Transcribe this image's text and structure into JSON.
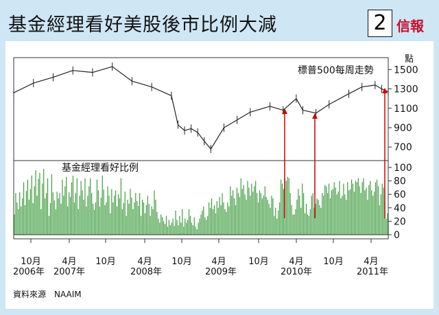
{
  "header": {
    "title": "基金經理看好美股後市比例大減",
    "page_number": "2",
    "brand": "信報"
  },
  "source": "資料來源　NAAIM",
  "chart_data": [
    {
      "type": "line",
      "title": "標普500每周走勢",
      "unit": "點",
      "yticks": [
        1500,
        1300,
        1100,
        900,
        700
      ],
      "ylim": [
        560,
        1580
      ],
      "x": [
        "2006-09",
        "2006-12",
        "2007-03",
        "2007-06",
        "2007-09",
        "2007-12",
        "2008-03",
        "2008-06",
        "2008-09",
        "2008-10",
        "2008-11",
        "2008-12",
        "2009-01",
        "2009-02",
        "2009-03",
        "2009-05",
        "2009-07",
        "2009-09",
        "2009-12",
        "2010-02",
        "2010-04",
        "2010-05",
        "2010-07",
        "2010-09",
        "2010-12",
        "2011-02",
        "2011-04",
        "2011-05",
        "2011-06"
      ],
      "values": [
        1260,
        1360,
        1420,
        1490,
        1470,
        1530,
        1380,
        1320,
        1230,
        930,
        870,
        890,
        850,
        760,
        680,
        900,
        980,
        1060,
        1120,
        1080,
        1200,
        1080,
        1050,
        1140,
        1250,
        1320,
        1340,
        1300,
        1270
      ]
    },
    {
      "type": "bar",
      "title": "基金經理看好比例",
      "yticks": [
        100,
        80,
        60,
        40,
        20,
        0
      ],
      "ylim": [
        0,
        100
      ],
      "color": "#3a9a3a",
      "values": [
        30,
        62,
        48,
        38,
        63,
        42,
        54,
        78,
        44,
        65,
        82,
        52,
        68,
        88,
        47,
        72,
        96,
        58,
        83,
        92,
        38,
        76,
        98,
        54,
        62,
        84,
        28,
        47,
        90,
        63,
        51,
        38,
        64,
        54,
        62,
        46,
        82,
        58,
        72,
        86,
        42,
        63,
        56,
        78,
        88,
        48,
        62,
        84,
        38,
        58,
        80,
        66,
        52,
        84,
        42,
        58,
        72,
        84,
        62,
        46,
        37,
        48,
        82,
        66,
        42,
        55,
        88,
        67,
        44,
        48,
        72,
        58,
        32,
        68,
        48,
        58,
        66,
        42,
        60,
        54,
        84,
        38,
        47,
        64,
        28,
        52,
        46,
        68,
        55,
        38,
        48,
        62,
        50,
        43,
        62,
        28,
        52,
        48,
        32,
        44,
        58,
        46,
        28,
        42,
        38,
        66,
        52,
        34,
        24,
        18,
        30,
        26,
        20,
        16,
        28,
        12,
        22,
        14,
        18,
        24,
        13,
        36,
        22,
        14,
        28,
        18,
        38,
        12,
        24,
        18,
        22,
        38,
        28,
        18,
        14,
        26,
        12,
        8,
        18,
        24,
        30,
        36,
        42,
        26,
        22,
        28,
        48,
        40,
        54,
        38,
        44,
        32,
        50,
        40,
        56,
        44,
        62,
        48,
        38,
        34,
        48,
        42,
        72,
        58,
        66,
        54,
        44,
        70,
        62,
        56,
        84,
        68,
        74,
        60,
        52,
        80,
        70,
        58,
        76,
        64,
        72,
        80,
        62,
        48,
        66,
        62,
        54,
        58,
        72,
        56,
        52,
        46,
        40,
        58,
        54,
        28,
        40,
        24,
        36,
        48,
        82,
        76,
        68,
        84,
        80,
        86,
        84,
        62,
        44,
        30,
        30,
        38,
        52,
        68,
        58,
        40,
        76,
        62,
        32,
        46,
        30,
        28,
        38,
        58,
        62,
        40,
        46,
        54,
        52,
        44,
        40,
        62,
        58,
        74,
        72,
        62,
        76,
        54,
        66,
        68,
        78,
        70,
        60,
        64,
        80,
        54,
        58,
        76,
        60,
        52,
        78,
        66,
        68,
        82,
        76,
        64,
        80,
        78,
        84,
        72,
        62,
        78,
        84,
        66,
        70,
        52,
        74,
        80,
        66,
        58,
        64,
        78,
        82,
        72,
        44,
        60,
        76,
        70,
        50,
        24,
        32
      ],
      "marker_color": "#cc3333"
    }
  ],
  "xaxis": {
    "tick_labels": [
      "10月",
      "4月",
      "10月",
      "4月",
      "10月",
      "4月",
      "10月",
      "4月",
      "10月",
      "4月"
    ],
    "year_labels": [
      "2006年",
      "2007年",
      "2008年",
      "2009年",
      "2010年",
      "2011年"
    ]
  },
  "annotations": {
    "arrow_color": "#cc0000",
    "arrow_count": 3
  }
}
